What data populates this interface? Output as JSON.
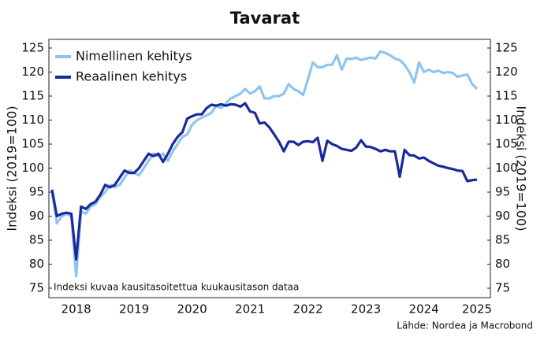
{
  "chart_data": {
    "type": "line",
    "title": "Tavarat",
    "y_label": "Indeksi (2019=100)",
    "y2_label": "Indeksi (2019=100)",
    "annotation": "Indeksi kuvaa kausitasoitettua kuukausitason dataa",
    "source": "Lähde: Nordea ja Macrobond",
    "legend": "upper left",
    "grid": false,
    "categories": [
      null,
      null,
      null,
      null,
      null,
      "2018",
      null,
      null,
      null,
      null,
      null,
      null,
      null,
      null,
      null,
      null,
      null,
      "2019",
      null,
      null,
      null,
      null,
      null,
      null,
      null,
      null,
      null,
      null,
      null,
      "2020",
      null,
      null,
      null,
      null,
      null,
      null,
      null,
      null,
      null,
      null,
      null,
      "2021",
      null,
      null,
      null,
      null,
      null,
      null,
      null,
      null,
      null,
      null,
      null,
      "2022",
      null,
      null,
      null,
      null,
      null,
      null,
      null,
      null,
      null,
      null,
      null,
      "2023",
      null,
      null,
      null,
      null,
      null,
      null,
      null,
      null,
      null,
      null,
      null,
      "2024",
      null,
      null,
      null,
      null,
      null,
      null,
      null,
      null,
      null,
      null,
      "2025"
    ],
    "ylim": [
      75,
      125
    ],
    "yticks": [
      75,
      80,
      85,
      90,
      95,
      100,
      105,
      110,
      115,
      120,
      125
    ],
    "y2lim": [
      75,
      125
    ],
    "y2ticks": [
      75,
      80,
      85,
      90,
      95,
      100,
      105,
      110,
      115,
      120,
      125
    ],
    "series": [
      {
        "name": "Nimellinen kehitys",
        "color": "#8ec5f0",
        "values": [
          95,
          88.5,
          90,
          90.5,
          90,
          77.5,
          91,
          90.5,
          92,
          92.5,
          94,
          95,
          96.5,
          96,
          96.5,
          98,
          99.5,
          99,
          98.5,
          100,
          101.5,
          103,
          102.5,
          103,
          101.5,
          103.5,
          105,
          106.5,
          107,
          109,
          110,
          110.5,
          111,
          111.5,
          113,
          112.5,
          113.5,
          114.5,
          115,
          115.5,
          116.5,
          115.5,
          116,
          117,
          114.5,
          114.5,
          115,
          115,
          115.5,
          117.5,
          116.5,
          116,
          115.2,
          118.5,
          122,
          121,
          121,
          121.5,
          121.5,
          123.5,
          120.5,
          122.8,
          122.7,
          123,
          122.5,
          122.8,
          123,
          122.8,
          124.3,
          124,
          123.5,
          122.8,
          122.5,
          121.5,
          120,
          117.8,
          122,
          120,
          120.5,
          120,
          120.3,
          119.8,
          120,
          119.8,
          119,
          119.3,
          119.5,
          117.5,
          116.5
        ]
      },
      {
        "name": "Reaalinen kehitys",
        "color": "#1a2a9c",
        "values": [
          95.5,
          90,
          90.5,
          90.7,
          90.5,
          81,
          92,
          91.5,
          92.5,
          93,
          94.5,
          96.5,
          96,
          96.5,
          98,
          99.5,
          99,
          99,
          100,
          101.5,
          103,
          102.5,
          103,
          101.3,
          103,
          105,
          106.5,
          107.5,
          110.3,
          110.8,
          111.2,
          111.2,
          112.5,
          113.2,
          113,
          113.3,
          113,
          113.3,
          113.2,
          112.8,
          113.5,
          111.8,
          111.5,
          109.3,
          109.5,
          108.5,
          107,
          105.5,
          103.5,
          105.5,
          105.5,
          104.8,
          105.5,
          105.6,
          105.4,
          106.3,
          101.5,
          105.7,
          105,
          104.6,
          104,
          103.8,
          103.6,
          104.3,
          105.8,
          104.5,
          104.4,
          104,
          103.5,
          103.8,
          103.5,
          103.5,
          98.2,
          103.8,
          102.7,
          102.6,
          102,
          102.2,
          101.5,
          101,
          100.5,
          100.3,
          100,
          99.8,
          99.5,
          99.4,
          97.3,
          97.5,
          97.6
        ]
      }
    ]
  }
}
